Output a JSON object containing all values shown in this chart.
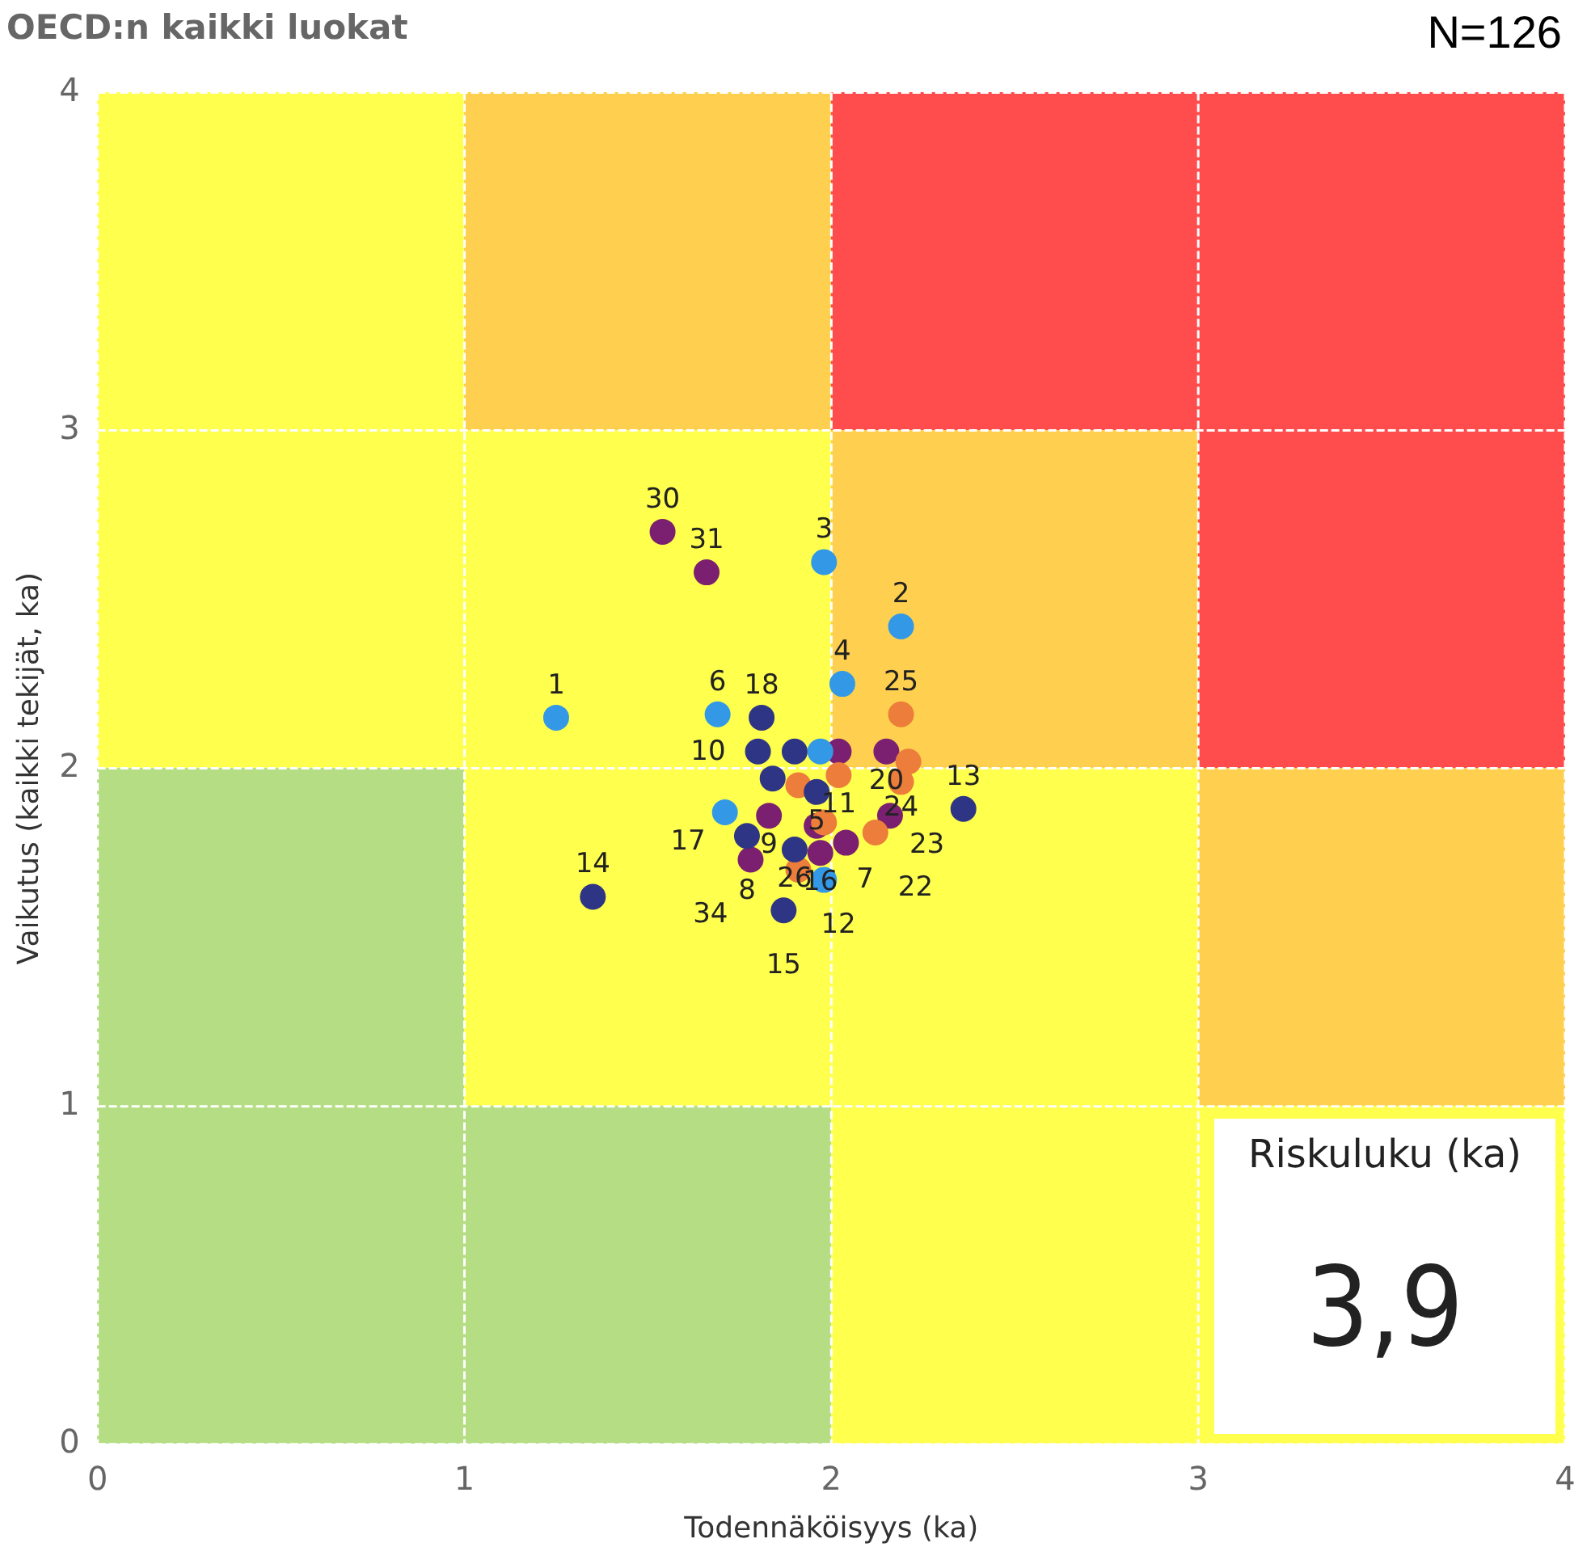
{
  "chart_data": [
    {
      "type": "scatter",
      "title": "OECD:n kaikki luokat",
      "xlabel": "Todennäköisyys (ka)",
      "ylabel": "Vaikutus (kaikki tekijät, ka)",
      "xlim": [
        0,
        4
      ],
      "ylim": [
        0,
        4
      ],
      "xticks": [
        0,
        1,
        2,
        3,
        4
      ],
      "yticks": [
        0,
        1,
        2,
        3,
        4
      ],
      "grid": true,
      "legend": false,
      "marker": "circle",
      "series": [
        {
          "color": "#3399e6",
          "x": [
            1.25,
            1.98,
            2.19,
            2.03,
            1.69,
            1.97,
            1.71,
            1.98
          ],
          "values": [
            2.15,
            2.61,
            2.42,
            2.25,
            2.16,
            2.05,
            1.87,
            1.67
          ]
        },
        {
          "color": "#2e3585",
          "x": [
            1.81,
            1.8,
            1.9,
            2.36,
            1.96,
            1.84,
            1.77,
            1.9,
            1.87,
            1.35
          ],
          "values": [
            2.15,
            2.05,
            2.05,
            1.88,
            1.93,
            1.97,
            1.8,
            1.76,
            1.58,
            1.62
          ]
        },
        {
          "color": "#ec7d3a",
          "x": [
            2.19,
            2.21,
            2.19,
            2.02,
            1.91,
            1.98,
            2.12,
            1.91
          ],
          "values": [
            2.16,
            2.02,
            1.96,
            1.98,
            1.95,
            1.84,
            1.81,
            1.7
          ]
        },
        {
          "color": "#7b2070",
          "x": [
            1.54,
            1.66,
            2.02,
            2.15,
            2.16,
            1.83,
            2.04,
            1.96,
            1.97,
            1.78
          ],
          "values": [
            2.7,
            2.58,
            2.05,
            2.05,
            1.86,
            1.86,
            1.78,
            1.83,
            1.75,
            1.73
          ]
        }
      ],
      "annotations": [
        "N=126",
        {
          "text": "1",
          "x": 1.25,
          "y": 2.15
        },
        {
          "text": "30",
          "x": 1.54,
          "y": 2.7
        },
        {
          "text": "31",
          "x": 1.66,
          "y": 2.58
        },
        {
          "text": "3",
          "x": 1.98,
          "y": 2.61
        },
        {
          "text": "2",
          "x": 2.19,
          "y": 2.42
        },
        {
          "text": "25",
          "x": 2.19,
          "y": 2.16
        },
        {
          "text": "4",
          "x": 2.03,
          "y": 2.25
        },
        {
          "text": "6",
          "x": 1.69,
          "y": 2.16
        },
        {
          "text": "18",
          "x": 1.81,
          "y": 2.15
        },
        {
          "text": "10",
          "x": 1.8,
          "y": 2.05
        },
        {
          "text": "20",
          "x": 2.15,
          "y": 2.05
        },
        {
          "text": "24",
          "x": 2.19,
          "y": 1.97
        },
        {
          "text": "13",
          "x": 2.36,
          "y": 1.88
        },
        {
          "text": "23",
          "x": 2.16,
          "y": 1.86
        },
        {
          "text": "5",
          "x": 1.96,
          "y": 1.93
        },
        {
          "text": "11",
          "x": 2.02,
          "y": 1.98
        },
        {
          "text": "17",
          "x": 1.71,
          "y": 1.87
        },
        {
          "text": "9",
          "x": 1.83,
          "y": 1.86
        },
        {
          "text": "16",
          "x": 1.97,
          "y": 1.75
        },
        {
          "text": "8",
          "x": 1.77,
          "y": 1.8
        },
        {
          "text": "34",
          "x": 1.78,
          "y": 1.73
        },
        {
          "text": "12",
          "x": 1.91,
          "y": 1.7
        },
        {
          "text": "7",
          "x": 1.98,
          "y": 1.67
        },
        {
          "text": "15",
          "x": 1.87,
          "y": 1.58
        },
        {
          "text": "14",
          "x": 1.35,
          "y": 1.62
        },
        {
          "text": "22",
          "x": 2.12,
          "y": 1.81
        },
        {
          "text": "26",
          "x": 1.9,
          "y": 1.76
        }
      ]
    },
    {
      "type": "other",
      "title": "Riskuluku (ka)",
      "annotations": [
        "3,9"
      ]
    }
  ]
}
